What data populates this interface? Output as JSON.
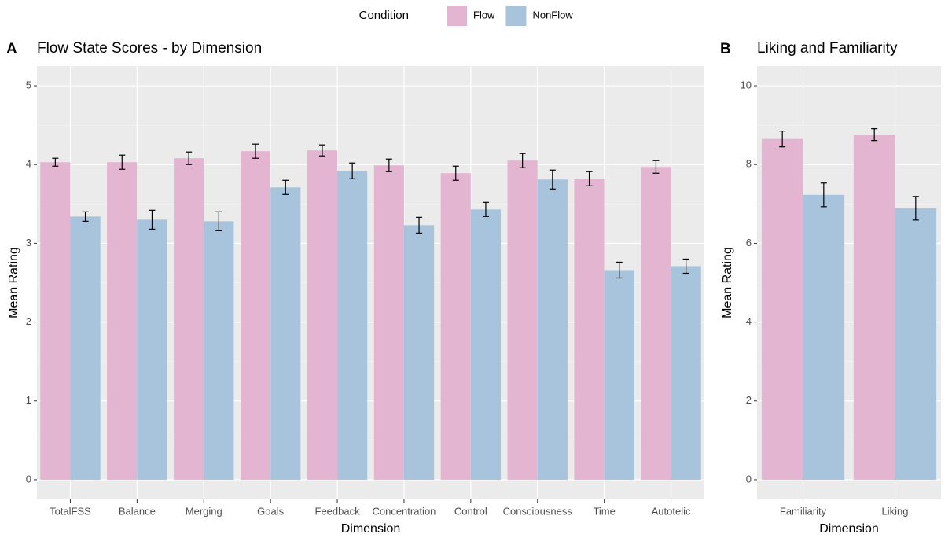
{
  "legend_title": "Condition",
  "chart_data": [
    {
      "type": "bar",
      "tag": "A",
      "title": "Flow State Scores - by Dimension",
      "x_label": "Dimension",
      "y_label": "Mean Rating",
      "categories": [
        "TotalFSS",
        "Balance",
        "Merging",
        "Goals",
        "Feedback",
        "Concentration",
        "Control",
        "Consciousness",
        "Time",
        "Autotelic"
      ],
      "series": [
        {
          "name": "Flow",
          "color": "#e3b5d0",
          "values": [
            4.03,
            4.03,
            4.08,
            4.17,
            4.18,
            3.99,
            3.89,
            4.05,
            3.82,
            3.97
          ],
          "errors": [
            0.05,
            0.09,
            0.08,
            0.09,
            0.07,
            0.08,
            0.09,
            0.09,
            0.09,
            0.08
          ]
        },
        {
          "name": "NonFlow",
          "color": "#a7c4dc",
          "values": [
            3.34,
            3.3,
            3.28,
            3.71,
            3.92,
            3.23,
            3.43,
            3.81,
            2.66,
            2.71
          ],
          "errors": [
            0.06,
            0.12,
            0.12,
            0.09,
            0.1,
            0.1,
            0.09,
            0.12,
            0.1,
            0.09
          ]
        }
      ],
      "ylim": [
        -0.25,
        5.25
      ],
      "yticks": [
        0,
        1,
        2,
        3,
        4,
        5
      ],
      "grid": true
    },
    {
      "type": "bar",
      "tag": "B",
      "title": "Liking and Familiarity",
      "x_label": "Dimension",
      "y_label": "Mean Rating",
      "categories": [
        "Familiarity",
        "Liking"
      ],
      "series": [
        {
          "name": "Flow",
          "color": "#e3b5d0",
          "values": [
            8.65,
            8.76
          ],
          "errors": [
            0.2,
            0.15
          ]
        },
        {
          "name": "NonFlow",
          "color": "#a7c4dc",
          "values": [
            7.23,
            6.89
          ],
          "errors": [
            0.3,
            0.3
          ]
        }
      ],
      "ylim": [
        -0.5,
        10.5
      ],
      "yticks": [
        0,
        2,
        4,
        6,
        8,
        10
      ],
      "grid": true
    }
  ]
}
